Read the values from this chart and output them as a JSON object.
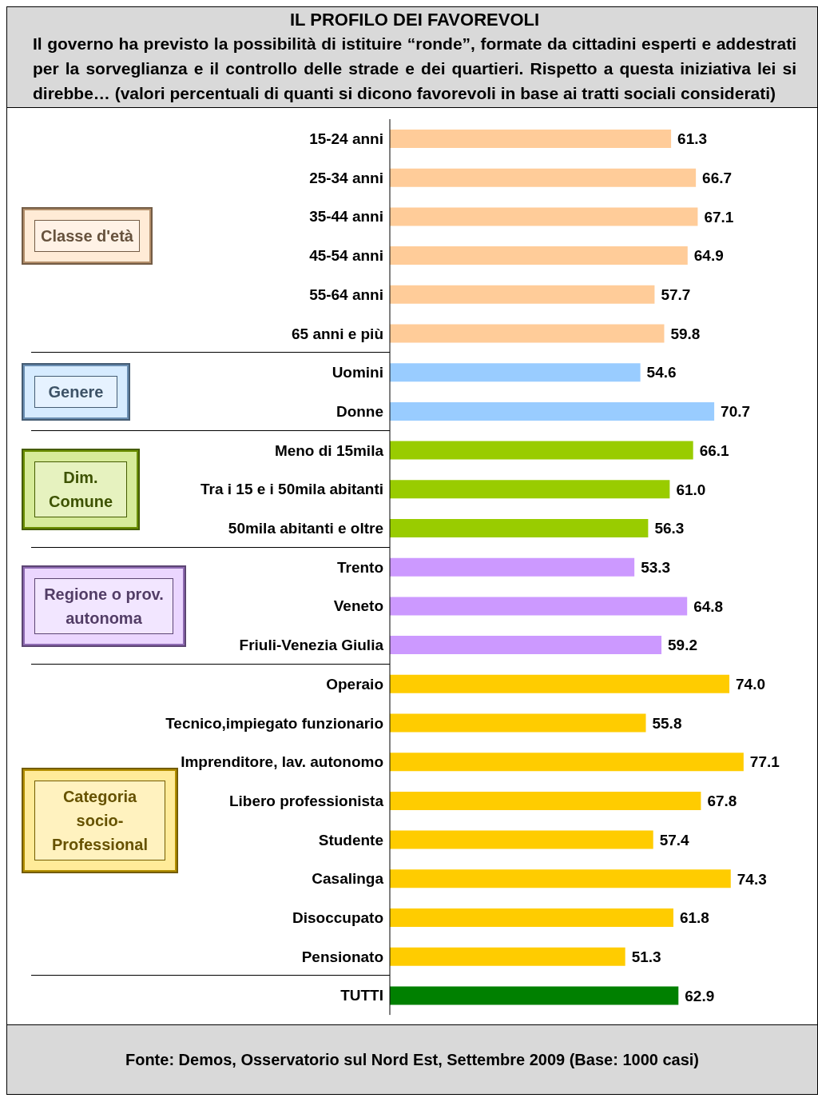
{
  "chart_data": {
    "type": "bar",
    "orientation": "horizontal",
    "title": "IL PROFILO DEI FAVOREVOLI",
    "subtitle": "Il governo ha previsto la possibilità di istituire “ronde”, formate da cittadini esperti e addestrati per la sorveglianza e il controllo delle strade e dei quartieri. Rispetto a questa iniziativa lei si direbbe… (valori percentuali di quanti si dicono favorevoli in base ai tratti sociali considerati)",
    "categories": [
      "15-24 anni",
      "25-34 anni",
      "35-44 anni",
      "45-54 anni",
      "55-64 anni",
      "65 anni e più",
      "Uomini",
      "Donne",
      "Meno di 15mila",
      "Tra i 15 e i 50mila abitanti",
      "50mila abitanti e oltre",
      "Trento",
      "Veneto",
      "Friuli-Venezia Giulia",
      "Operaio",
      "Tecnico,impiegato funzionario",
      "Imprenditore, lav. autonomo",
      "Libero professionista",
      "Studente",
      "Casalinga",
      "Disoccupato",
      "Pensionato",
      "TUTTI"
    ],
    "values": [
      61.3,
      66.7,
      67.1,
      64.9,
      57.7,
      59.8,
      54.6,
      70.7,
      66.1,
      61.0,
      56.3,
      53.3,
      64.8,
      59.2,
      74.0,
      55.8,
      77.1,
      67.8,
      57.4,
      74.3,
      61.8,
      51.3,
      62.9
    ],
    "value_labels": [
      "61.3",
      "66.7",
      "67.1",
      "64.9",
      "57.7",
      "59.8",
      "54.6",
      "70.7",
      "66.1",
      "61.0",
      "56.3",
      "53.3",
      "64.8",
      "59.2",
      "74.0",
      "55.8",
      "77.1",
      "67.8",
      "57.4",
      "74.3",
      "61.8",
      "51.3",
      "62.9"
    ],
    "colors": [
      "#ffcc99",
      "#ffcc99",
      "#ffcc99",
      "#ffcc99",
      "#ffcc99",
      "#ffcc99",
      "#99ccff",
      "#99ccff",
      "#99cc00",
      "#99cc00",
      "#99cc00",
      "#cc99ff",
      "#cc99ff",
      "#cc99ff",
      "#ffcc00",
      "#ffcc00",
      "#ffcc00",
      "#ffcc00",
      "#ffcc00",
      "#ffcc00",
      "#ffcc00",
      "#ffcc00",
      "#008000"
    ],
    "annotations": [
      "Classe d'età",
      "Genere",
      "Dim. Comune",
      "Regione o prov. autonoma",
      "Categoria socio-Professional",
      "Fonte: Demos, Osservatorio sul Nord Est, Settembre 2009 (Base: 1000 casi)"
    ]
  }
}
